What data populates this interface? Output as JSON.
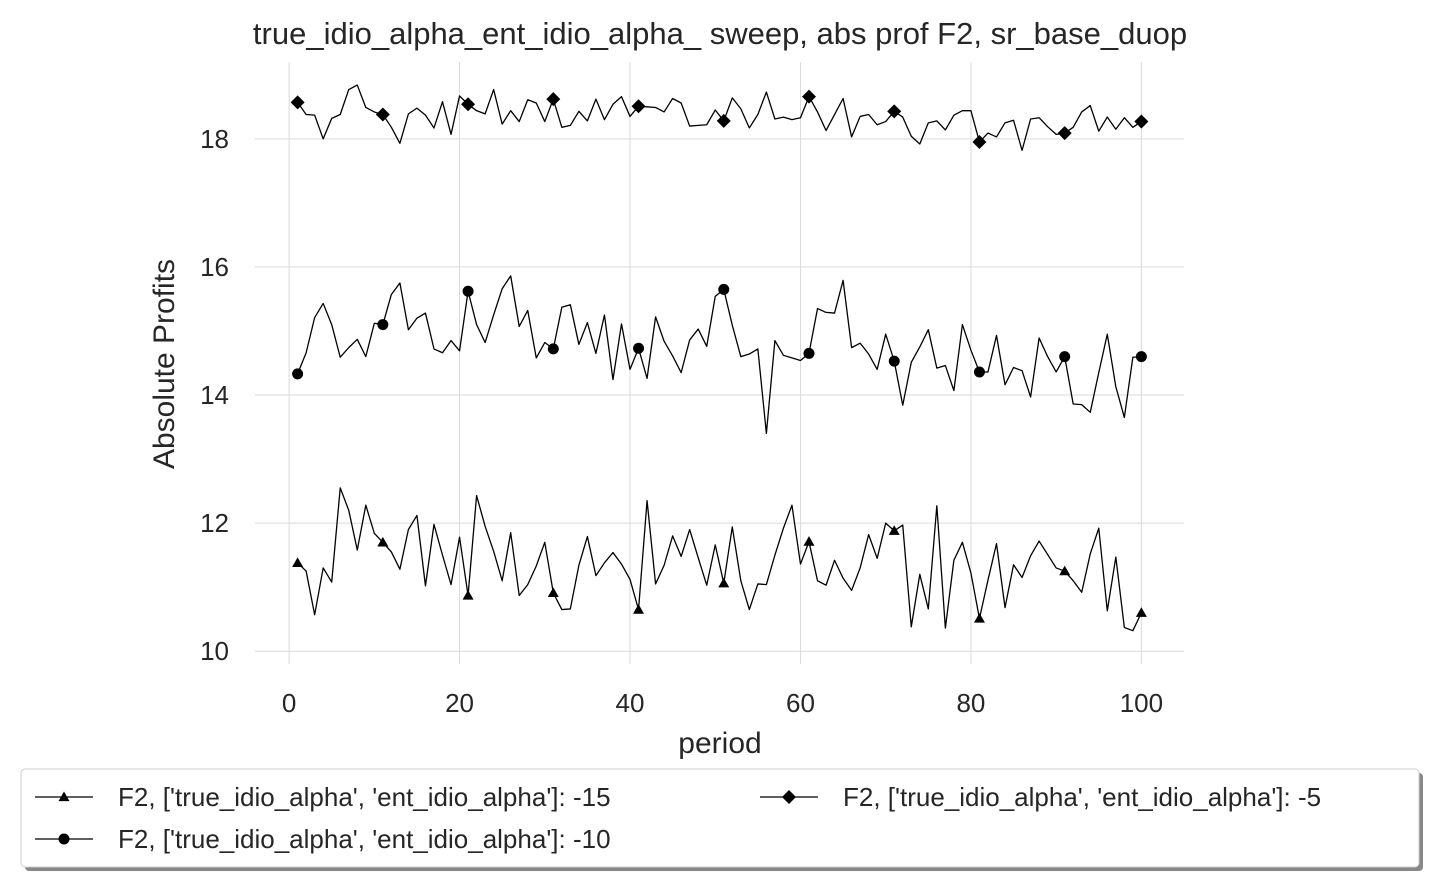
{
  "chart_data": {
    "type": "line",
    "title": "true_idio_alpha_ent_idio_alpha_ sweep, abs prof F2, sr_base_duop",
    "xlabel": "period",
    "ylabel": "Absolute Profits",
    "xlim": [
      -4,
      105
    ],
    "ylim": [
      9.8,
      19.2
    ],
    "xticks": [
      0,
      20,
      40,
      60,
      80,
      100
    ],
    "yticks": [
      10,
      12,
      14,
      16,
      18
    ],
    "grid": true,
    "legend_position": "below",
    "x": [
      1,
      2,
      3,
      4,
      5,
      6,
      7,
      8,
      9,
      10,
      11,
      12,
      13,
      14,
      15,
      16,
      17,
      18,
      19,
      20,
      21,
      22,
      23,
      24,
      25,
      26,
      27,
      28,
      29,
      30,
      31,
      32,
      33,
      34,
      35,
      36,
      37,
      38,
      39,
      40,
      41,
      42,
      43,
      44,
      45,
      46,
      47,
      48,
      49,
      50,
      51,
      52,
      53,
      54,
      55,
      56,
      57,
      58,
      59,
      60,
      61,
      62,
      63,
      64,
      65,
      66,
      67,
      68,
      69,
      70,
      71,
      72,
      73,
      74,
      75,
      76,
      77,
      78,
      79,
      80,
      81,
      82,
      83,
      84,
      85,
      86,
      87,
      88,
      89,
      90,
      91,
      92,
      93,
      94,
      95,
      96,
      97,
      98,
      99,
      100
    ],
    "series": [
      {
        "name": "F2, ['true_idio_alpha', 'ent_idio_alpha']: -15",
        "marker": "triangle",
        "marker_every": 10,
        "values": [
          11.38,
          11.25,
          10.57,
          11.3,
          11.08,
          12.55,
          12.2,
          11.58,
          12.28,
          11.84,
          11.7,
          11.55,
          11.28,
          11.9,
          12.12,
          11.02,
          11.98,
          11.5,
          11.04,
          11.78,
          10.87,
          12.43,
          11.95,
          11.56,
          11.1,
          11.85,
          10.87,
          11.04,
          11.33,
          11.7,
          10.91,
          10.65,
          10.66,
          11.34,
          11.79,
          11.18,
          11.38,
          11.54,
          11.36,
          11.12,
          10.65,
          12.35,
          11.05,
          11.34,
          11.8,
          11.48,
          11.9,
          11.46,
          11.03,
          11.66,
          11.06,
          11.94,
          11.1,
          10.65,
          11.05,
          11.04,
          11.5,
          11.92,
          12.28,
          11.36,
          11.71,
          11.1,
          11.03,
          11.42,
          11.14,
          10.95,
          11.3,
          11.82,
          11.45,
          12.0,
          11.88,
          11.97,
          10.38,
          11.2,
          10.66,
          12.27,
          10.36,
          11.42,
          11.7,
          11.22,
          10.51,
          11.11,
          11.68,
          10.68,
          11.35,
          11.15,
          11.49,
          11.72,
          11.51,
          11.3,
          11.25,
          11.1,
          10.92,
          11.52,
          11.92,
          10.63,
          11.47,
          10.37,
          10.32,
          10.6
        ]
      },
      {
        "name": "F2, ['true_idio_alpha', 'ent_idio_alpha']: -10",
        "marker": "circle",
        "marker_every": 10,
        "values": [
          14.33,
          14.66,
          15.21,
          15.43,
          15.1,
          14.59,
          14.74,
          14.87,
          14.6,
          15.12,
          15.1,
          15.57,
          15.75,
          15.02,
          15.2,
          15.28,
          14.72,
          14.66,
          14.85,
          14.69,
          15.62,
          15.1,
          14.82,
          15.25,
          15.66,
          15.86,
          15.07,
          15.32,
          14.58,
          14.82,
          14.72,
          15.37,
          15.41,
          14.79,
          15.13,
          14.65,
          15.25,
          14.24,
          15.11,
          14.4,
          14.73,
          14.26,
          15.22,
          14.84,
          14.61,
          14.35,
          14.86,
          15.03,
          14.76,
          15.54,
          15.65,
          15.09,
          14.6,
          14.64,
          14.72,
          13.4,
          14.85,
          14.62,
          14.58,
          14.54,
          14.65,
          15.35,
          15.29,
          15.28,
          15.79,
          14.74,
          14.81,
          14.64,
          14.4,
          14.95,
          14.53,
          13.84,
          14.51,
          14.75,
          15.02,
          14.42,
          14.46,
          14.07,
          15.1,
          14.7,
          14.36,
          14.36,
          14.93,
          14.16,
          14.43,
          14.38,
          13.97,
          14.89,
          14.6,
          14.36,
          14.6,
          13.86,
          13.85,
          13.73,
          14.35,
          14.95,
          14.13,
          13.65,
          14.59,
          14.6
        ]
      },
      {
        "name": "F2, ['true_idio_alpha', 'ent_idio_alpha']: -5",
        "marker": "diamond",
        "marker_every": 10,
        "values": [
          18.57,
          18.38,
          18.37,
          18.0,
          18.32,
          18.38,
          18.77,
          18.84,
          18.49,
          18.42,
          18.38,
          18.18,
          17.93,
          18.39,
          18.48,
          18.37,
          18.17,
          18.58,
          18.07,
          18.67,
          18.54,
          18.44,
          18.39,
          18.77,
          18.23,
          18.44,
          18.27,
          18.61,
          18.56,
          18.27,
          18.62,
          18.18,
          18.21,
          18.43,
          18.28,
          18.62,
          18.3,
          18.54,
          18.66,
          18.35,
          18.51,
          18.5,
          18.49,
          18.42,
          18.63,
          18.56,
          18.2,
          18.21,
          18.22,
          18.45,
          18.28,
          18.64,
          18.47,
          18.17,
          18.38,
          18.73,
          18.31,
          18.34,
          18.3,
          18.33,
          18.66,
          18.42,
          18.13,
          18.38,
          18.63,
          18.03,
          18.35,
          18.38,
          18.22,
          18.27,
          18.43,
          18.34,
          18.04,
          17.92,
          18.25,
          18.28,
          18.14,
          18.37,
          18.44,
          18.44,
          17.95,
          18.09,
          18.03,
          18.25,
          18.29,
          17.82,
          18.31,
          18.33,
          18.19,
          18.07,
          18.09,
          18.18,
          18.42,
          18.52,
          18.12,
          18.34,
          18.15,
          18.33,
          18.18,
          18.27
        ]
      }
    ]
  }
}
